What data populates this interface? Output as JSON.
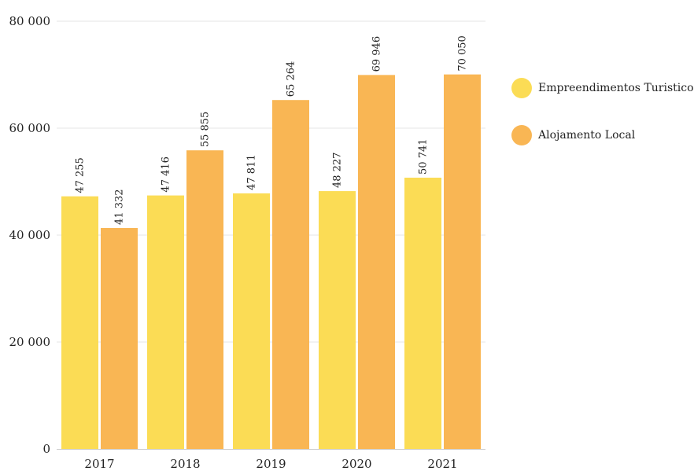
{
  "chart_data": {
    "type": "bar",
    "categories": [
      "2017",
      "2018",
      "2019",
      "2020",
      "2021"
    ],
    "series": [
      {
        "name": "Empreendimentos Turisticos",
        "values": [
          47255,
          47416,
          47811,
          48227,
          50741
        ],
        "labels": [
          "47 255",
          "47 416",
          "47 811",
          "48 227",
          "50 741"
        ],
        "color": "#FBDC55"
      },
      {
        "name": "Alojamento Local",
        "values": [
          41332,
          55855,
          65264,
          69946,
          70050
        ],
        "labels": [
          "41 332",
          "55 855",
          "65 264",
          "69 946",
          "70 050"
        ],
        "color": "#F9B654"
      }
    ],
    "yticks": [
      0,
      20000,
      40000,
      60000,
      80000
    ],
    "ytick_labels": [
      "0",
      "20 000",
      "40 000",
      "60 000",
      "80 000"
    ],
    "ylim": [
      0,
      80000
    ],
    "grid": true,
    "legend_position": "right",
    "title": "",
    "xlabel": "",
    "ylabel": ""
  }
}
